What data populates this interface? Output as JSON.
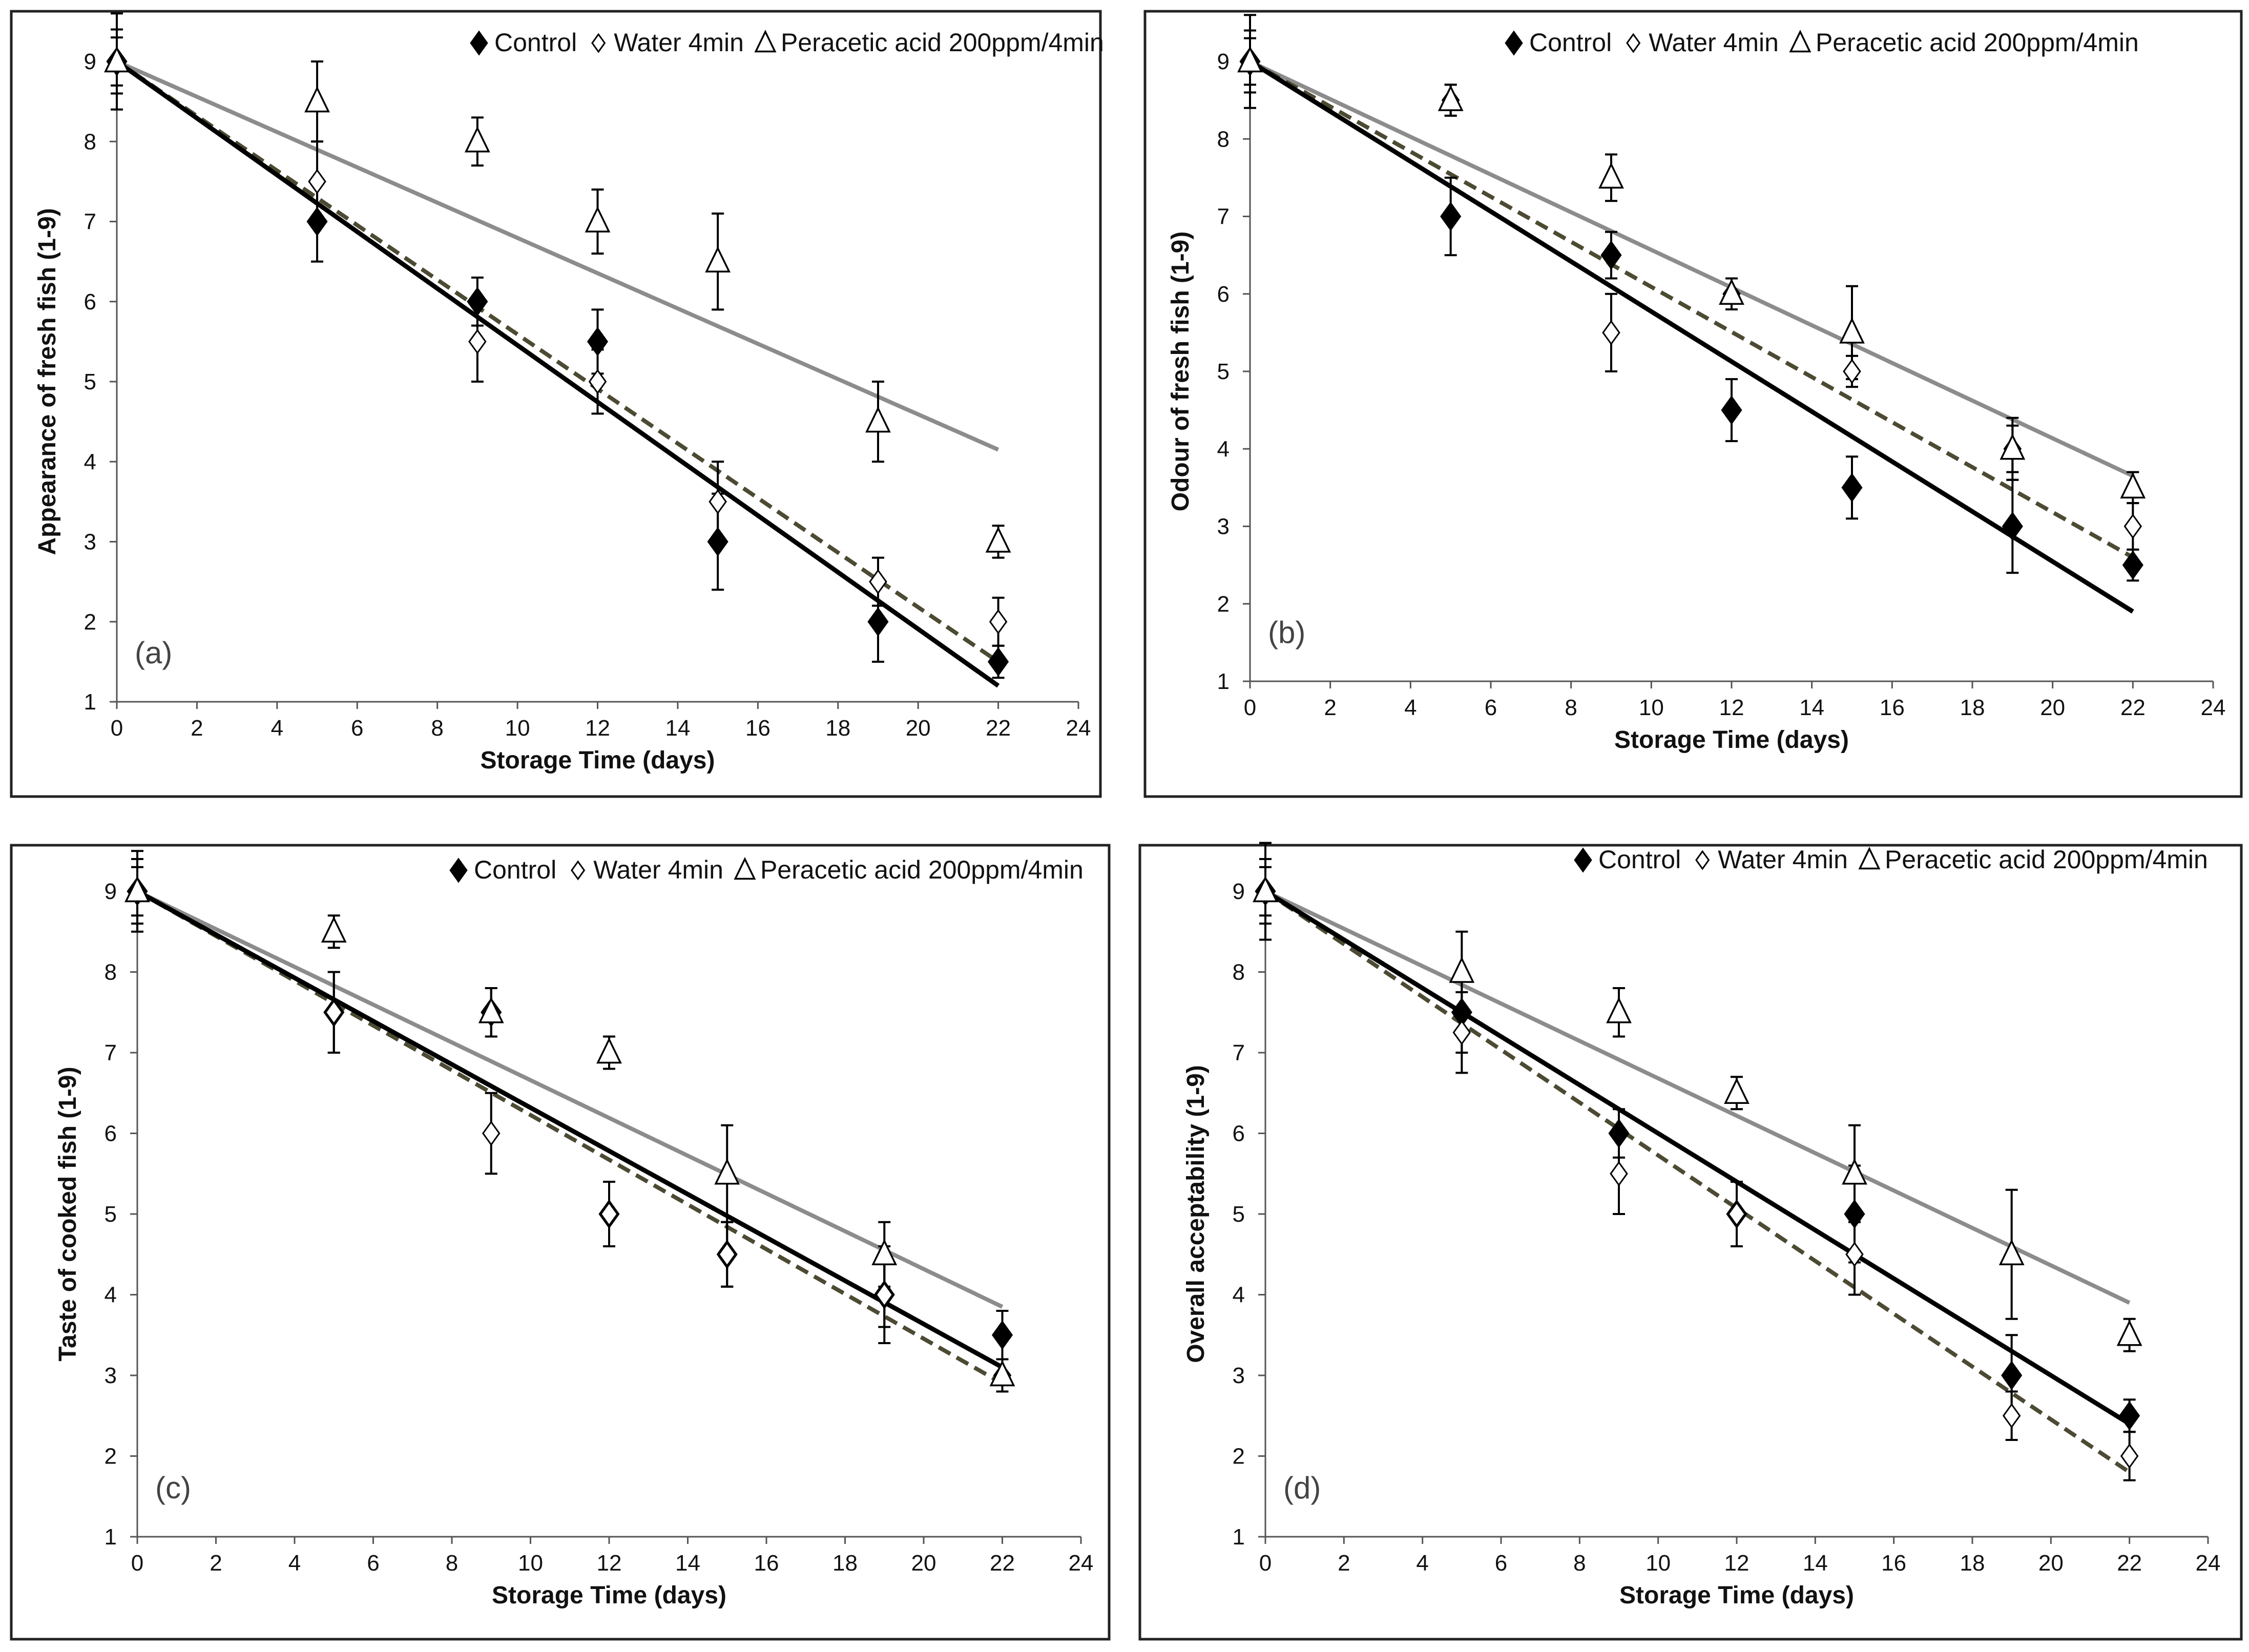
{
  "colors": {
    "control": "#000000",
    "water": "#4d4a33",
    "paa": "#8c8c8c",
    "frame": "#222222"
  },
  "chart_data": [
    {
      "type": "scatter",
      "panel_label": "(a)",
      "xlabel": "Storage Time (days)",
      "ylabel": "Appearance of fresh fish (1-9)",
      "xlim": [
        0,
        24
      ],
      "ylim": [
        1,
        9
      ],
      "xticks": [
        "0",
        "2",
        "4",
        "6",
        "8",
        "10",
        "12",
        "14",
        "16",
        "18",
        "20",
        "22",
        "24"
      ],
      "yticks": [
        "1",
        "2",
        "3",
        "4",
        "5",
        "6",
        "7",
        "8",
        "9"
      ],
      "legend": {
        "control": "Control",
        "water": "Water 4min",
        "paa": "Peracetic acid 200ppm/4min"
      },
      "x": [
        0,
        5,
        9,
        12,
        15,
        19,
        22
      ],
      "series": [
        {
          "name": "Control",
          "key": "control",
          "values": [
            9,
            7,
            6,
            5.5,
            3,
            2,
            1.5
          ],
          "errors": [
            0.6,
            0.5,
            0.3,
            0.4,
            0.6,
            0.5,
            0.2
          ],
          "trend": [
            9,
            1.2
          ]
        },
        {
          "name": "Water 4min",
          "key": "water",
          "values": [
            9,
            7.5,
            5.5,
            5,
            3.5,
            2.5,
            2
          ],
          "errors": [
            0.4,
            0.5,
            0.5,
            0.4,
            0.5,
            0.3,
            0.3
          ],
          "trend": [
            9,
            1.5
          ]
        },
        {
          "name": "Peracetic acid 200ppm/4min",
          "key": "paa",
          "values": [
            9,
            8.5,
            8,
            7,
            6.5,
            4.5,
            3
          ],
          "errors": [
            0.3,
            0.5,
            0.3,
            0.4,
            0.6,
            0.5,
            0.2
          ],
          "trend": [
            9,
            4.15
          ]
        }
      ]
    },
    {
      "type": "scatter",
      "panel_label": "(b)",
      "xlabel": "Storage Time (days)",
      "ylabel": "Odour of fresh fish (1-9)",
      "xlim": [
        0,
        24
      ],
      "ylim": [
        1,
        9
      ],
      "xticks": [
        "0",
        "2",
        "4",
        "6",
        "8",
        "10",
        "12",
        "14",
        "16",
        "18",
        "20",
        "22",
        "24"
      ],
      "yticks": [
        "1",
        "2",
        "3",
        "4",
        "5",
        "6",
        "7",
        "8",
        "9"
      ],
      "legend": {
        "control": "Control",
        "water": "Water 4min",
        "paa": "Peracetic acid 200ppm/4min"
      },
      "x": [
        0,
        5,
        9,
        12,
        15,
        19,
        22
      ],
      "series": [
        {
          "name": "Control",
          "key": "control",
          "values": [
            9,
            7,
            6.5,
            4.5,
            3.5,
            3,
            2.5
          ],
          "errors": [
            0.6,
            0.5,
            0.3,
            0.4,
            0.4,
            0.6,
            0.2
          ],
          "trend": [
            9,
            1.9
          ]
        },
        {
          "name": "Water 4min",
          "key": "water",
          "values": [
            9,
            8.5,
            5.5,
            6,
            5,
            4,
            3
          ],
          "errors": [
            0.4,
            0.2,
            0.5,
            0.2,
            0.2,
            0.3,
            0.3
          ],
          "trend": [
            9,
            2.6
          ]
        },
        {
          "name": "Peracetic acid 200ppm/4min",
          "key": "paa",
          "values": [
            9,
            8.5,
            7.5,
            6,
            5.5,
            4,
            3.5
          ],
          "errors": [
            0.3,
            0.2,
            0.3,
            0.2,
            0.6,
            0.4,
            0.2
          ],
          "trend": [
            9,
            3.65
          ]
        }
      ]
    },
    {
      "type": "scatter",
      "panel_label": "(c)",
      "xlabel": "Storage Time (days)",
      "ylabel": "Taste of cooked fish (1-9)",
      "xlim": [
        0,
        24
      ],
      "ylim": [
        1,
        9
      ],
      "xticks": [
        "0",
        "2",
        "4",
        "6",
        "8",
        "10",
        "12",
        "14",
        "16",
        "18",
        "20",
        "22",
        "24"
      ],
      "yticks": [
        "1",
        "2",
        "3",
        "4",
        "5",
        "6",
        "7",
        "8",
        "9"
      ],
      "legend": {
        "control": "Control",
        "water": "Water 4min",
        "paa": "Peracetic acid 200ppm/4min"
      },
      "x": [
        0,
        5,
        9,
        12,
        15,
        19,
        22
      ],
      "series": [
        {
          "name": "Control",
          "key": "control",
          "values": [
            9,
            7.5,
            7.5,
            5,
            4.5,
            4,
            3.5
          ],
          "errors": [
            0.5,
            0.5,
            0.3,
            0.4,
            0.4,
            0.6,
            0.3
          ],
          "trend": [
            9,
            3.1
          ]
        },
        {
          "name": "Water 4min",
          "key": "water",
          "values": [
            9,
            7.5,
            6,
            5,
            4.5,
            4,
            3
          ],
          "errors": [
            0.4,
            0.5,
            0.5,
            0.4,
            0.4,
            0.4,
            0.2
          ],
          "trend": [
            9,
            2.9
          ]
        },
        {
          "name": "Peracetic acid 200ppm/4min",
          "key": "paa",
          "values": [
            9,
            8.5,
            7.5,
            7,
            5.5,
            4.5,
            3
          ],
          "errors": [
            0.3,
            0.2,
            0.3,
            0.2,
            0.6,
            0.4,
            0.2
          ],
          "trend": [
            9,
            3.85
          ]
        }
      ]
    },
    {
      "type": "scatter",
      "panel_label": "(d)",
      "xlabel": "Storage Time (days)",
      "ylabel": "Overall acceptability (1-9)",
      "xlim": [
        0,
        24
      ],
      "ylim": [
        1,
        9
      ],
      "xticks": [
        "0",
        "2",
        "4",
        "6",
        "8",
        "10",
        "12",
        "14",
        "16",
        "18",
        "20",
        "22",
        "24"
      ],
      "yticks": [
        "1",
        "2",
        "3",
        "4",
        "5",
        "6",
        "7",
        "8",
        "9"
      ],
      "legend": {
        "control": "Control",
        "water": "Water 4min",
        "paa": "Peracetic  acid 200ppm/4min"
      },
      "x": [
        0,
        5,
        9,
        12,
        15,
        19,
        22
      ],
      "series": [
        {
          "name": "Control",
          "key": "control",
          "values": [
            9,
            7.5,
            6,
            5,
            5,
            3,
            2.5
          ],
          "errors": [
            0.6,
            0.5,
            0.3,
            0.4,
            0.6,
            0.5,
            0.2
          ],
          "trend": [
            9,
            2.4
          ]
        },
        {
          "name": "Water 4min",
          "key": "water",
          "values": [
            9,
            7.25,
            5.5,
            5,
            4.5,
            2.5,
            2
          ],
          "errors": [
            0.4,
            0.5,
            0.5,
            0.4,
            0.5,
            0.3,
            0.3
          ],
          "trend": [
            9,
            1.8
          ]
        },
        {
          "name": "Peracetic  acid 200ppm/4min",
          "key": "paa",
          "values": [
            9,
            8,
            7.5,
            6.5,
            5.5,
            4.5,
            3.5
          ],
          "errors": [
            0.3,
            0.5,
            0.3,
            0.2,
            0.6,
            0.8,
            0.2
          ],
          "trend": [
            9,
            3.9
          ]
        }
      ]
    }
  ]
}
